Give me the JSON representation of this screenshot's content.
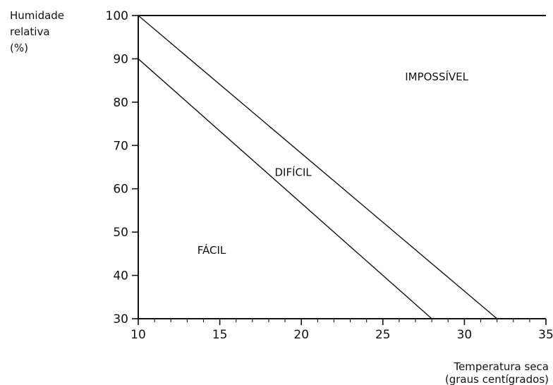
{
  "chart_data": {
    "type": "line",
    "ylabel_lines": [
      "Humidade",
      "relativa",
      "(%)"
    ],
    "xlabel_lines": [
      "Temperatura seca",
      "(graus centígrados)"
    ],
    "xlim": [
      10,
      35
    ],
    "ylim": [
      30,
      100
    ],
    "x_ticks": [
      10,
      15,
      20,
      25,
      30,
      35
    ],
    "y_ticks": [
      30,
      40,
      50,
      60,
      70,
      80,
      90,
      100
    ],
    "grid": false,
    "series": [
      {
        "points": [
          [
            10,
            90
          ],
          [
            28,
            30
          ]
        ]
      },
      {
        "points": [
          [
            10,
            100
          ],
          [
            32,
            30
          ]
        ]
      }
    ],
    "regions": [
      {
        "label": "FÁCIL",
        "x": 14.5,
        "y": 45
      },
      {
        "label": "DIFÍCIL",
        "x": 19.5,
        "y": 63
      },
      {
        "label": "IMPOSSÍVEL",
        "x": 28.3,
        "y": 85
      }
    ]
  }
}
